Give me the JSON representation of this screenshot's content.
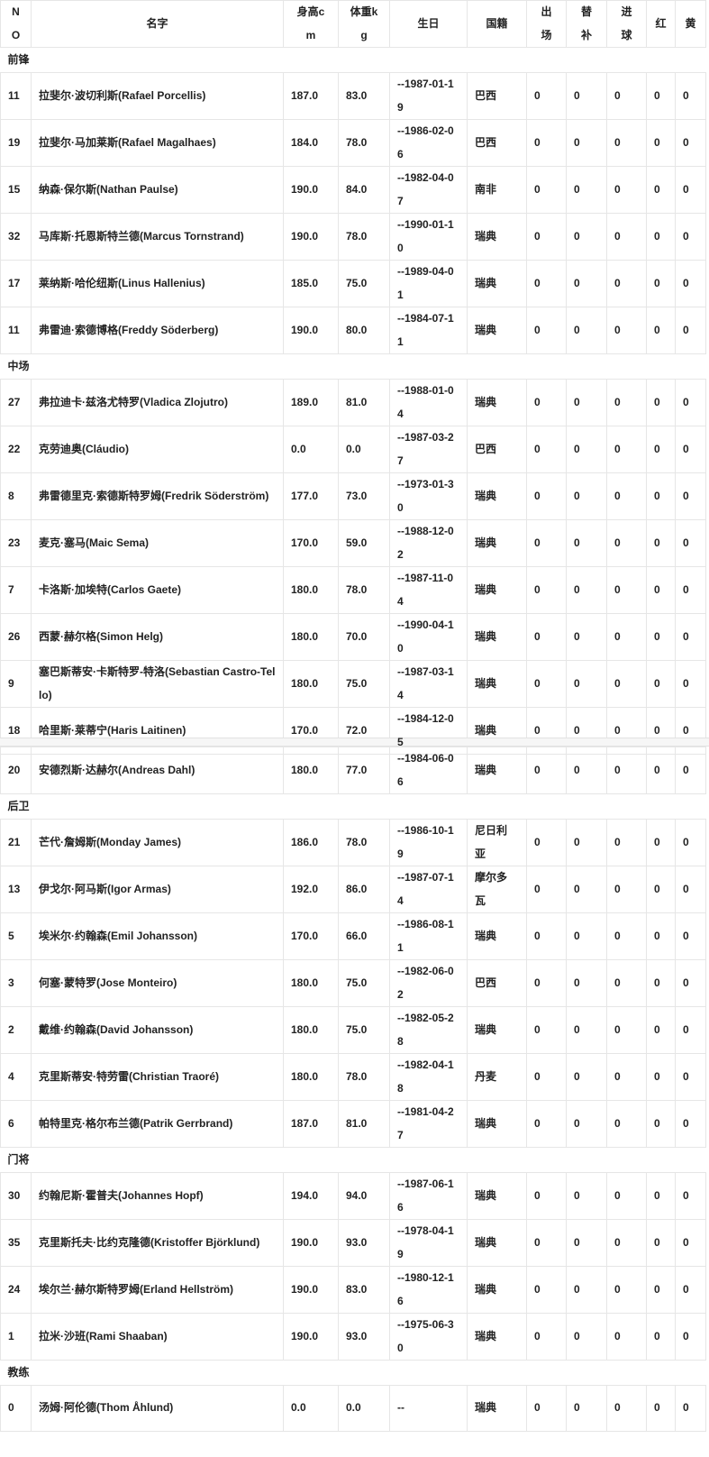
{
  "headers": [
    "NO",
    "名字",
    "身高cm",
    "体重kg",
    "生日",
    "国籍",
    "出场",
    "替补",
    "进球",
    "红",
    "黄"
  ],
  "groups": [
    {
      "label": "前锋",
      "players": [
        [
          "11",
          "拉斐尔·波切利斯(Rafael Porcellis)",
          "187.0",
          "83.0",
          "--1987-01-19",
          "巴西",
          "0",
          "0",
          "0",
          "0",
          "0"
        ],
        [
          "19",
          "拉斐尔·马加莱斯(Rafael Magalhaes)",
          "184.0",
          "78.0",
          "--1986-02-06",
          "巴西",
          "0",
          "0",
          "0",
          "0",
          "0"
        ],
        [
          "15",
          "纳森·保尔斯(Nathan Paulse)",
          "190.0",
          "84.0",
          "--1982-04-07",
          "南非",
          "0",
          "0",
          "0",
          "0",
          "0"
        ],
        [
          "32",
          "马库斯·托恩斯特兰德(Marcus Tornstrand)",
          "190.0",
          "78.0",
          "--1990-01-10",
          "瑞典",
          "0",
          "0",
          "0",
          "0",
          "0"
        ],
        [
          "17",
          "莱纳斯·哈伦纽斯(Linus Hallenius)",
          "185.0",
          "75.0",
          "--1989-04-01",
          "瑞典",
          "0",
          "0",
          "0",
          "0",
          "0"
        ],
        [
          "11",
          "弗雷迪·索德博格(Freddy Söderberg)",
          "190.0",
          "80.0",
          "--1984-07-11",
          "瑞典",
          "0",
          "0",
          "0",
          "0",
          "0"
        ]
      ]
    },
    {
      "label": "中场",
      "players": [
        [
          "27",
          "弗拉迪卡·兹洛尤特罗(Vladica Zlojutro)",
          "189.0",
          "81.0",
          "--1988-01-04",
          "瑞典",
          "0",
          "0",
          "0",
          "0",
          "0"
        ],
        [
          "22",
          "克劳迪奥(Cláudio)",
          "0.0",
          "0.0",
          "--1987-03-27",
          "巴西",
          "0",
          "0",
          "0",
          "0",
          "0"
        ],
        [
          "8",
          "弗雷德里克·索德斯特罗姆(Fredrik Söderström)",
          "177.0",
          "73.0",
          "--1973-01-30",
          "瑞典",
          "0",
          "0",
          "0",
          "0",
          "0"
        ],
        [
          "23",
          "麦克·塞马(Maic Sema)",
          "170.0",
          "59.0",
          "--1988-12-02",
          "瑞典",
          "0",
          "0",
          "0",
          "0",
          "0"
        ],
        [
          "7",
          "卡洛斯·加埃特(Carlos Gaete)",
          "180.0",
          "78.0",
          "--1987-11-04",
          "瑞典",
          "0",
          "0",
          "0",
          "0",
          "0"
        ],
        [
          "26",
          "西蒙·赫尔格(Simon Helg)",
          "180.0",
          "70.0",
          "--1990-04-10",
          "瑞典",
          "0",
          "0",
          "0",
          "0",
          "0"
        ],
        [
          "9",
          "塞巴斯蒂安·卡斯特罗-特洛(Sebastian Castro-Tello)",
          "180.0",
          "75.0",
          "--1987-03-14",
          "瑞典",
          "0",
          "0",
          "0",
          "0",
          "0"
        ],
        [
          "18",
          "哈里斯·莱蒂宁(Haris Laitinen)",
          "170.0",
          "72.0",
          "--1984-12-05",
          "瑞典",
          "0",
          "0",
          "0",
          "0",
          "0"
        ],
        [
          "20",
          "安德烈斯·达赫尔(Andreas Dahl)",
          "180.0",
          "77.0",
          "--1984-06-06",
          "瑞典",
          "0",
          "0",
          "0",
          "0",
          "0"
        ]
      ]
    },
    {
      "label": "后卫",
      "players": [
        [
          "21",
          "芒代·詹姆斯(Monday James)",
          "186.0",
          "78.0",
          "--1986-10-19",
          "尼日利亚",
          "0",
          "0",
          "0",
          "0",
          "0"
        ],
        [
          "13",
          "伊戈尔·阿马斯(Igor Armas)",
          "192.0",
          "86.0",
          "--1987-07-14",
          "摩尔多瓦",
          "0",
          "0",
          "0",
          "0",
          "0"
        ],
        [
          "5",
          "埃米尔·约翰森(Emil Johansson)",
          "170.0",
          "66.0",
          "--1986-08-11",
          "瑞典",
          "0",
          "0",
          "0",
          "0",
          "0"
        ],
        [
          "3",
          "何塞·蒙特罗(Jose Monteiro)",
          "180.0",
          "75.0",
          "--1982-06-02",
          "巴西",
          "0",
          "0",
          "0",
          "0",
          "0"
        ],
        [
          "2",
          "戴维·约翰森(David Johansson)",
          "180.0",
          "75.0",
          "--1982-05-28",
          "瑞典",
          "0",
          "0",
          "0",
          "0",
          "0"
        ],
        [
          "4",
          "克里斯蒂安·特劳雷(Christian Traoré)",
          "180.0",
          "78.0",
          "--1982-04-18",
          "丹麦",
          "0",
          "0",
          "0",
          "0",
          "0"
        ],
        [
          "6",
          "帕特里克·格尔布兰德(Patrik Gerrbrand)",
          "187.0",
          "81.0",
          "--1981-04-27",
          "瑞典",
          "0",
          "0",
          "0",
          "0",
          "0"
        ]
      ]
    },
    {
      "label": "门将",
      "players": [
        [
          "30",
          "约翰尼斯·霍普夫(Johannes Hopf)",
          "194.0",
          "94.0",
          "--1987-06-16",
          "瑞典",
          "0",
          "0",
          "0",
          "0",
          "0"
        ],
        [
          "35",
          "克里斯托夫·比约克隆德(Kristoffer Björklund)",
          "190.0",
          "93.0",
          "--1978-04-19",
          "瑞典",
          "0",
          "0",
          "0",
          "0",
          "0"
        ],
        [
          "24",
          "埃尔兰·赫尔斯特罗姆(Erland Hellström)",
          "190.0",
          "83.0",
          "--1980-12-16",
          "瑞典",
          "0",
          "0",
          "0",
          "0",
          "0"
        ],
        [
          "1",
          "拉米·沙班(Rami Shaaban)",
          "190.0",
          "93.0",
          "--1975-06-30",
          "瑞典",
          "0",
          "0",
          "0",
          "0",
          "0"
        ]
      ]
    },
    {
      "label": "教练",
      "players": [
        [
          "0",
          "汤姆·阿伦德(Thom Åhlund)",
          "0.0",
          "0.0",
          "--",
          "瑞典",
          "0",
          "0",
          "0",
          "0",
          "0"
        ]
      ]
    }
  ]
}
